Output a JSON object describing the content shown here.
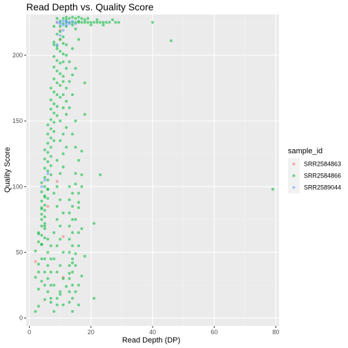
{
  "chart_data": {
    "type": "scatter",
    "title": "Read Depth vs. Quality Score",
    "xlabel": "Read Depth (DP)",
    "ylabel": "Quality Score",
    "xlim": [
      -1,
      81
    ],
    "ylim": [
      -6,
      231
    ],
    "xticks": [
      0,
      20,
      40,
      60,
      80
    ],
    "yticks": [
      0,
      50,
      100,
      150,
      200
    ],
    "grid": true,
    "legend": {
      "title": "sample_id",
      "position": "right"
    },
    "series": [
      {
        "name": "SRR2584863",
        "color": "#F8766D",
        "points": [
          [
            2,
            43
          ],
          [
            9,
            104
          ],
          [
            6,
            85
          ],
          [
            11,
            31
          ],
          [
            10,
            219
          ],
          [
            9,
            225
          ],
          [
            10,
            212
          ],
          [
            11,
            62
          ]
        ]
      },
      {
        "name": "SRR2584866",
        "color": "#00BA38",
        "points": [
          [
            12,
            225
          ],
          [
            13,
            225
          ],
          [
            14,
            225
          ],
          [
            15,
            225
          ],
          [
            16,
            225
          ],
          [
            17,
            225
          ],
          [
            18,
            225
          ],
          [
            19,
            225
          ],
          [
            20,
            225
          ],
          [
            21,
            225
          ],
          [
            22,
            225
          ],
          [
            23,
            225
          ],
          [
            24,
            225
          ],
          [
            25,
            225
          ],
          [
            26,
            225
          ],
          [
            28,
            225
          ],
          [
            29,
            225
          ],
          [
            40,
            225
          ],
          [
            13,
            228
          ],
          [
            15,
            228
          ],
          [
            17,
            228
          ],
          [
            19,
            228
          ],
          [
            9,
            228
          ],
          [
            11,
            228
          ],
          [
            8,
            222
          ],
          [
            10,
            222
          ],
          [
            12,
            222
          ],
          [
            46,
            211
          ],
          [
            79,
            98
          ],
          [
            23,
            109
          ],
          [
            21,
            72
          ],
          [
            21,
            15
          ],
          [
            18,
            47
          ],
          [
            18,
            179
          ],
          [
            18,
            155
          ],
          [
            17,
            127
          ],
          [
            17,
            109
          ],
          [
            16,
            88
          ],
          [
            15,
            102
          ],
          [
            16,
            84
          ],
          [
            16,
            65
          ],
          [
            15,
            49
          ],
          [
            14,
            42
          ],
          [
            13,
            34
          ],
          [
            12,
            24
          ],
          [
            13,
            12
          ],
          [
            10,
            18
          ],
          [
            9,
            10
          ],
          [
            7,
            12
          ],
          [
            5,
            14
          ],
          [
            3,
            9
          ],
          [
            2,
            5
          ],
          [
            3,
            22
          ],
          [
            2,
            31
          ],
          [
            4,
            28
          ],
          [
            3,
            41
          ],
          [
            2,
            51
          ],
          [
            4,
            56
          ],
          [
            3,
            64
          ],
          [
            5,
            70
          ],
          [
            4,
            83
          ],
          [
            5,
            92
          ],
          [
            6,
            98
          ],
          [
            10,
            212
          ],
          [
            11,
            209
          ],
          [
            9,
            216
          ],
          [
            10,
            218
          ],
          [
            11,
            214
          ],
          [
            8,
            208
          ],
          [
            9,
            205
          ],
          [
            10,
            203
          ],
          [
            11,
            201
          ],
          [
            8,
            199
          ],
          [
            9,
            196
          ],
          [
            10,
            194
          ],
          [
            8,
            191
          ],
          [
            9,
            188
          ],
          [
            10,
            186
          ],
          [
            11,
            184
          ],
          [
            8,
            182
          ],
          [
            9,
            179
          ],
          [
            10,
            177
          ],
          [
            7,
            175
          ],
          [
            8,
            172
          ],
          [
            9,
            170
          ],
          [
            10,
            168
          ],
          [
            7,
            166
          ],
          [
            8,
            163
          ],
          [
            9,
            161
          ],
          [
            7,
            159
          ],
          [
            8,
            156
          ],
          [
            9,
            154
          ],
          [
            7,
            151
          ],
          [
            8,
            149
          ],
          [
            6,
            147
          ],
          [
            7,
            144
          ],
          [
            8,
            142
          ],
          [
            6,
            140
          ],
          [
            7,
            137
          ],
          [
            8,
            135
          ],
          [
            6,
            133
          ],
          [
            7,
            130
          ],
          [
            5,
            128
          ],
          [
            6,
            126
          ],
          [
            7,
            123
          ],
          [
            5,
            121
          ],
          [
            6,
            119
          ],
          [
            7,
            116
          ],
          [
            5,
            114
          ],
          [
            6,
            112
          ],
          [
            7,
            109
          ],
          [
            5,
            107
          ],
          [
            6,
            105
          ],
          [
            4,
            103
          ],
          [
            5,
            100
          ],
          [
            6,
            98
          ],
          [
            4,
            96
          ],
          [
            5,
            93
          ],
          [
            6,
            91
          ],
          [
            4,
            89
          ],
          [
            5,
            86
          ],
          [
            4,
            84
          ],
          [
            5,
            82
          ],
          [
            4,
            79
          ],
          [
            5,
            77
          ],
          [
            4,
            75
          ],
          [
            5,
            72
          ],
          [
            4,
            70
          ],
          [
            5,
            68
          ],
          [
            3,
            65
          ],
          [
            4,
            63
          ],
          [
            5,
            61
          ],
          [
            3,
            58
          ],
          [
            4,
            56
          ],
          [
            8,
            210
          ],
          [
            9,
            207
          ],
          [
            12,
            208
          ],
          [
            12,
            200
          ],
          [
            11,
            195
          ],
          [
            12,
            190
          ],
          [
            11,
            180
          ],
          [
            12,
            175
          ],
          [
            11,
            170
          ],
          [
            12,
            165
          ],
          [
            11,
            160
          ],
          [
            12,
            155
          ],
          [
            10,
            150
          ],
          [
            12,
            145
          ],
          [
            11,
            140
          ],
          [
            10,
            135
          ],
          [
            12,
            130
          ],
          [
            11,
            125
          ],
          [
            9,
            120
          ],
          [
            11,
            115
          ],
          [
            10,
            110
          ],
          [
            9,
            100
          ],
          [
            8,
            95
          ],
          [
            10,
            90
          ],
          [
            9,
            85
          ],
          [
            11,
            80
          ],
          [
            9,
            75
          ],
          [
            10,
            70
          ],
          [
            8,
            65
          ],
          [
            10,
            60
          ],
          [
            9,
            55
          ],
          [
            11,
            50
          ],
          [
            8,
            45
          ],
          [
            10,
            40
          ],
          [
            9,
            35
          ],
          [
            11,
            30
          ],
          [
            8,
            25
          ],
          [
            10,
            20
          ],
          [
            9,
            15
          ],
          [
            11,
            10
          ],
          [
            8,
            5
          ],
          [
            13,
            100
          ],
          [
            14,
            95
          ],
          [
            13,
            90
          ],
          [
            14,
            85
          ],
          [
            13,
            80
          ],
          [
            14,
            75
          ],
          [
            13,
            70
          ],
          [
            14,
            65
          ],
          [
            13,
            60
          ],
          [
            14,
            55
          ],
          [
            13,
            50
          ],
          [
            14,
            45
          ],
          [
            13,
            40
          ],
          [
            14,
            35
          ],
          [
            13,
            30
          ],
          [
            14,
            25
          ],
          [
            13,
            20
          ],
          [
            14,
            15
          ],
          [
            6,
            60
          ],
          [
            7,
            55
          ],
          [
            6,
            50
          ],
          [
            7,
            45
          ],
          [
            6,
            40
          ],
          [
            7,
            35
          ],
          [
            6,
            30
          ],
          [
            7,
            25
          ],
          [
            6,
            20
          ],
          [
            7,
            15
          ],
          [
            5,
            45
          ],
          [
            5,
            35
          ],
          [
            5,
            25
          ],
          [
            4,
            45
          ],
          [
            3,
            35
          ],
          [
            15,
            220
          ],
          [
            16,
            212
          ],
          [
            14,
            205
          ],
          [
            13,
            195
          ],
          [
            15,
            190
          ],
          [
            14,
            185
          ],
          [
            13,
            180
          ],
          [
            14,
            170
          ],
          [
            13,
            160
          ],
          [
            15,
            150
          ],
          [
            14,
            140
          ],
          [
            15,
            130
          ],
          [
            16,
            120
          ],
          [
            15,
            110
          ],
          [
            17,
            100
          ],
          [
            16,
            95
          ],
          [
            15,
            75
          ],
          [
            17,
            68
          ],
          [
            16,
            55
          ],
          [
            15,
            40
          ],
          [
            17,
            32
          ],
          [
            16,
            25
          ],
          [
            15,
            20
          ],
          [
            16,
            10
          ],
          [
            14,
            5
          ],
          [
            10,
            226
          ],
          [
            11,
            224
          ],
          [
            12,
            227
          ],
          [
            14,
            223
          ],
          [
            16,
            226
          ],
          [
            18,
            227
          ],
          [
            20,
            223
          ],
          [
            22,
            227
          ],
          [
            24,
            223
          ],
          [
            27,
            227
          ],
          [
            12,
            229
          ],
          [
            14,
            229
          ],
          [
            16,
            229
          ]
        ]
      },
      {
        "name": "SRR2589044",
        "color": "#619CFF",
        "points": [
          [
            10,
            225
          ],
          [
            11,
            226
          ],
          [
            12,
            225
          ],
          [
            10,
            224
          ],
          [
            11,
            223
          ],
          [
            12,
            226
          ],
          [
            13,
            224
          ],
          [
            9,
            225
          ],
          [
            14,
            226
          ],
          [
            11,
            219
          ],
          [
            10,
            215
          ],
          [
            5,
            105
          ],
          [
            4,
            100
          ],
          [
            6,
            110
          ],
          [
            9,
            208
          ],
          [
            13,
            225
          ],
          [
            15,
            224
          ],
          [
            12,
            223
          ]
        ]
      }
    ]
  }
}
